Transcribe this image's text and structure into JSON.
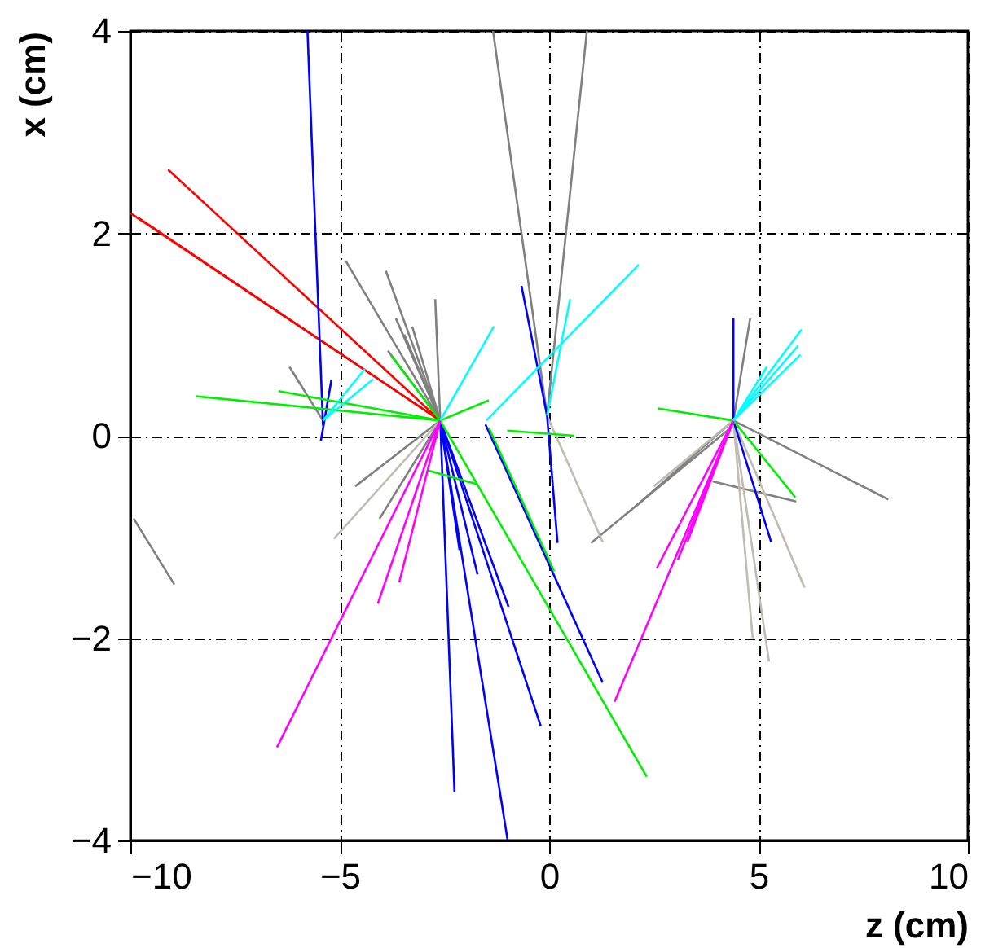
{
  "chart_data": {
    "type": "line",
    "xlabel": "z (cm)",
    "ylabel": "x (cm)",
    "xlim": [
      -10,
      10
    ],
    "xticks": [
      -10,
      -5,
      0,
      5,
      10
    ],
    "ylim": [
      -4,
      4
    ],
    "yticks": [
      -4,
      -2,
      0,
      2,
      4
    ],
    "grid": true,
    "series": [
      {
        "color": "#ff0000",
        "x": [
          -2.6,
          -10,
          null,
          -2.6,
          -9.8,
          null,
          -2.6,
          -9.1
        ],
        "values": [
          0.15,
          2.2,
          null,
          0.15,
          2.15,
          null,
          0.15,
          2.63
        ]
      },
      {
        "color": "#808080",
        "x": [
          -2.6,
          -4.86,
          null,
          -2.6,
          -3.9,
          null,
          -2.6,
          -3.66,
          null,
          -2.6,
          -3.46,
          null,
          -2.6,
          -3.27,
          null,
          -2.6,
          -2.72,
          null,
          -2.6,
          -3.85,
          null,
          -2.6,
          -4.63,
          null,
          -2.6,
          -4.05,
          null,
          -0.05,
          -1.34,
          null,
          -0.05,
          0.9,
          null,
          4.4,
          8.1,
          null,
          4.4,
          4.8,
          null,
          4.4,
          2.06,
          null,
          1.0,
          4.4,
          null,
          -9.92,
          -8.95,
          null,
          -6.2,
          -5.4,
          null,
          3.9,
          5.9
        ],
        "values": [
          0.15,
          1.73,
          null,
          0.15,
          1.63,
          null,
          0.15,
          1.16,
          null,
          0.15,
          1.0,
          null,
          0.15,
          1.08,
          null,
          0.15,
          1.35,
          null,
          0.15,
          0.84,
          null,
          0.15,
          -0.5,
          null,
          0.15,
          -0.82,
          null,
          0.2,
          4,
          null,
          0.2,
          4,
          null,
          0.15,
          -0.63,
          null,
          0.15,
          1.16,
          null,
          0.15,
          -0.7,
          null,
          -1.06,
          0.1,
          null,
          -0.82,
          -1.47,
          null,
          0.68,
          0.15,
          null,
          -0.45,
          -0.65
        ]
      },
      {
        "color": "#c0bcb4",
        "x": [
          -2.6,
          -5.14,
          null,
          -0.05,
          1.28,
          null,
          4.4,
          4.86,
          null,
          4.4,
          5.25,
          null,
          4.4,
          6.1,
          null,
          4.4,
          2.5
        ],
        "values": [
          0.15,
          -1.02,
          null,
          0.2,
          -1.05,
          null,
          0.15,
          -2.0,
          null,
          0.15,
          -2.23,
          null,
          0.15,
          -1.5,
          null,
          0.15,
          -0.5
        ]
      },
      {
        "color": "#0000ff",
        "x": [
          -2.6,
          -2.26,
          null,
          -2.6,
          -0.99,
          null,
          -2.6,
          -0.2,
          null,
          -2.6,
          -1.71,
          null,
          -2.6,
          -0.97,
          null,
          -2.6,
          -2.14,
          null,
          -0.05,
          0.2,
          null,
          -0.05,
          -0.66,
          null,
          -1.52,
          1.28,
          null,
          4.4,
          4.4,
          null,
          4.4,
          5.3,
          null,
          -5.77,
          -5.4,
          null,
          -5.45,
          -5.2
        ],
        "values": [
          0.15,
          -3.52,
          null,
          0.15,
          -4,
          null,
          0.15,
          -2.87,
          null,
          0.15,
          -1.37,
          null,
          0.15,
          -1.69,
          null,
          0.15,
          -1.13,
          null,
          0.2,
          -1.06,
          null,
          0.2,
          1.48,
          null,
          0.11,
          -2.44,
          null,
          0.15,
          1.16,
          null,
          0.15,
          -1.05,
          null,
          4,
          0.1,
          null,
          -0.05,
          0.55
        ]
      },
      {
        "color": "#00ee00",
        "x": [
          -2.6,
          -8.44,
          null,
          -2.6,
          -6.46,
          null,
          -2.6,
          -1.44,
          null,
          -2.6,
          2.33,
          null,
          -2.92,
          -1.71,
          null,
          -2.6,
          -3.77,
          null,
          2.6,
          4.4,
          null,
          4.4,
          5.88,
          null,
          -1.44,
          0.12,
          null,
          -1.0,
          0.6
        ],
        "values": [
          0.15,
          0.39,
          null,
          0.15,
          0.44,
          null,
          0.15,
          0.35,
          null,
          0.15,
          -3.37,
          null,
          -0.34,
          -0.48,
          null,
          0.15,
          0.79,
          null,
          0.27,
          0.15,
          null,
          0.15,
          -0.61,
          null,
          0.08,
          -1.34,
          null,
          0.05,
          0.0
        ]
      },
      {
        "color": "#ff00ff",
        "x": [
          -2.6,
          -6.5,
          null,
          -2.6,
          -4.09,
          null,
          -2.6,
          -3.58,
          null,
          4.4,
          1.56,
          null,
          4.4,
          2.57,
          null,
          4.4,
          3.07,
          null,
          4.4,
          3.3
        ],
        "values": [
          0.15,
          -3.08,
          null,
          0.15,
          -1.66,
          null,
          0.15,
          -1.45,
          null,
          0.15,
          -2.63,
          null,
          0.15,
          -1.31,
          null,
          0.15,
          -1.23,
          null,
          0.15,
          -1.05
        ]
      },
      {
        "color": "#00ffff",
        "x": [
          -2.6,
          -1.32,
          null,
          -5.4,
          -4.4,
          null,
          -5.4,
          -4.2,
          null,
          -0.05,
          0.5,
          null,
          -1.5,
          2.14,
          null,
          4.4,
          6.03,
          null,
          4.4,
          5.95,
          null,
          4.4,
          6.0,
          null,
          4.4,
          5.2
        ],
        "values": [
          0.15,
          1.08,
          null,
          0.15,
          0.66,
          null,
          0.15,
          0.56,
          null,
          0.2,
          1.35,
          null,
          0.15,
          1.69,
          null,
          0.15,
          1.05,
          null,
          0.15,
          0.89,
          null,
          0.15,
          0.8,
          null,
          0.15,
          0.68
        ]
      }
    ]
  }
}
